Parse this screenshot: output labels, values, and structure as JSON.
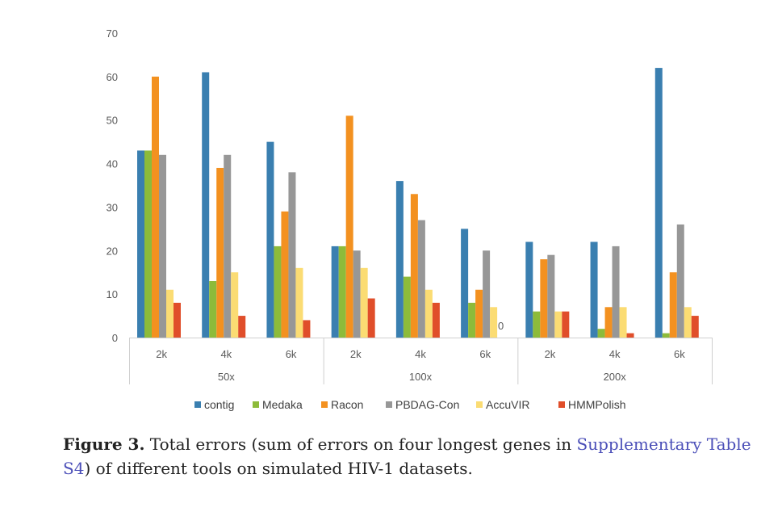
{
  "chart_data": {
    "type": "bar",
    "title": "",
    "xlabel": "",
    "ylabel": "",
    "ylim": [
      0,
      70
    ],
    "yticks": [
      0,
      10,
      20,
      30,
      40,
      50,
      60,
      70
    ],
    "groups": [
      {
        "label": "50x",
        "categories": [
          "2k",
          "4k",
          "6k"
        ]
      },
      {
        "label": "100x",
        "categories": [
          "2k",
          "4k",
          "6k"
        ]
      },
      {
        "label": "200x",
        "categories": [
          "2k",
          "4k",
          "6k"
        ]
      }
    ],
    "series": [
      {
        "name": "contig",
        "color": "#3a7fb0",
        "values": [
          43,
          61,
          45,
          21,
          36,
          25,
          22,
          22,
          62
        ]
      },
      {
        "name": "Medaka",
        "color": "#8dbb3a",
        "values": [
          43,
          13,
          21,
          21,
          14,
          8,
          6,
          2,
          1
        ]
      },
      {
        "name": "Racon",
        "color": "#f39120",
        "values": [
          60,
          39,
          29,
          51,
          33,
          11,
          18,
          7,
          15
        ]
      },
      {
        "name": "PBDAG-Con",
        "color": "#979797",
        "values": [
          42,
          42,
          38,
          20,
          27,
          20,
          19,
          21,
          26
        ]
      },
      {
        "name": "AccuVIR",
        "color": "#fbdc73",
        "values": [
          11,
          15,
          16,
          16,
          11,
          7,
          6,
          7,
          7
        ]
      },
      {
        "name": "HMMPolish",
        "color": "#e04e2a",
        "values": [
          8,
          5,
          4,
          9,
          8,
          0,
          6,
          1,
          5
        ]
      }
    ],
    "annotations": [
      {
        "text": "0",
        "series": "HMMPolish",
        "index": 5
      }
    ],
    "grid": false,
    "legend": "bottom"
  },
  "caption": {
    "label": "Figure 3.",
    "text_before": " Total errors (sum of errors on four longest genes in ",
    "link": "Supplementary Table S4",
    "text_after": ") of different tools on simulated HIV-1 datasets."
  }
}
